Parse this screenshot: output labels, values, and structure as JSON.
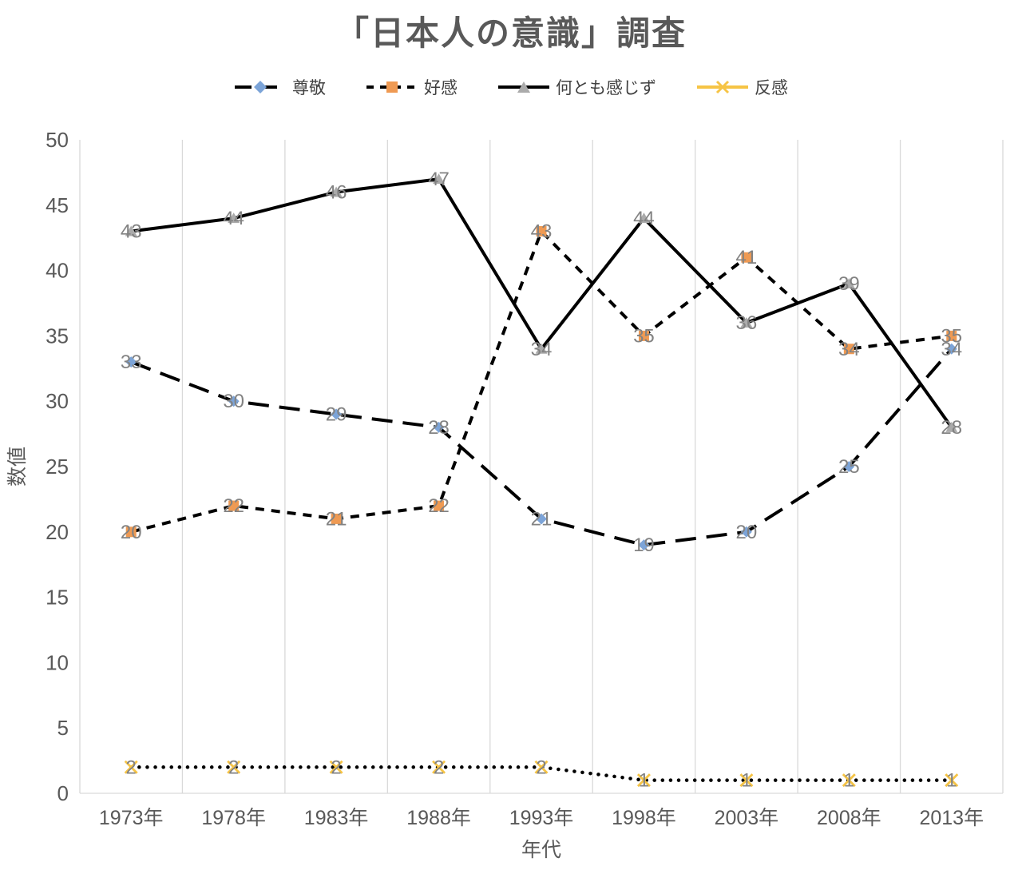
{
  "chart_data": {
    "type": "line",
    "title": "「日本人の意識」調査",
    "xlabel": "年代",
    "ylabel": "数値",
    "ylim": [
      0,
      50
    ],
    "ytick_step": 5,
    "grid": "vertical-only",
    "legend_position": "top",
    "categories": [
      "1973年",
      "1978年",
      "1983年",
      "1988年",
      "1993年",
      "1998年",
      "2003年",
      "2008年",
      "2013年"
    ],
    "series": [
      {
        "name": "尊敬",
        "values": [
          33,
          30,
          29,
          28,
          21,
          19,
          20,
          25,
          34
        ],
        "marker": "diamond",
        "marker_color": "#7CA4D8",
        "line_color": "#000000",
        "line_style": "long-dash"
      },
      {
        "name": "好感",
        "values": [
          20,
          22,
          21,
          22,
          43,
          35,
          41,
          34,
          35
        ],
        "marker": "square",
        "marker_color": "#EF9A53",
        "line_color": "#000000",
        "line_style": "dash"
      },
      {
        "name": "何とも感じず",
        "values": [
          43,
          44,
          46,
          47,
          34,
          44,
          36,
          39,
          28
        ],
        "marker": "triangle",
        "marker_color": "#ABABAB",
        "line_color": "#000000",
        "line_style": "solid"
      },
      {
        "name": "反感",
        "values": [
          2,
          2,
          2,
          2,
          2,
          1,
          1,
          1,
          1
        ],
        "marker": "x",
        "marker_color": "#F6C445",
        "line_color": "#000000",
        "line_style": "dot",
        "legend_line_color": "#F6C445",
        "legend_line_style": "solid"
      }
    ],
    "colors": {
      "title": "#595959",
      "axis_text": "#595959",
      "legend_text": "#404040",
      "data_label": "#828282",
      "grid": "#D9D9D9"
    }
  }
}
